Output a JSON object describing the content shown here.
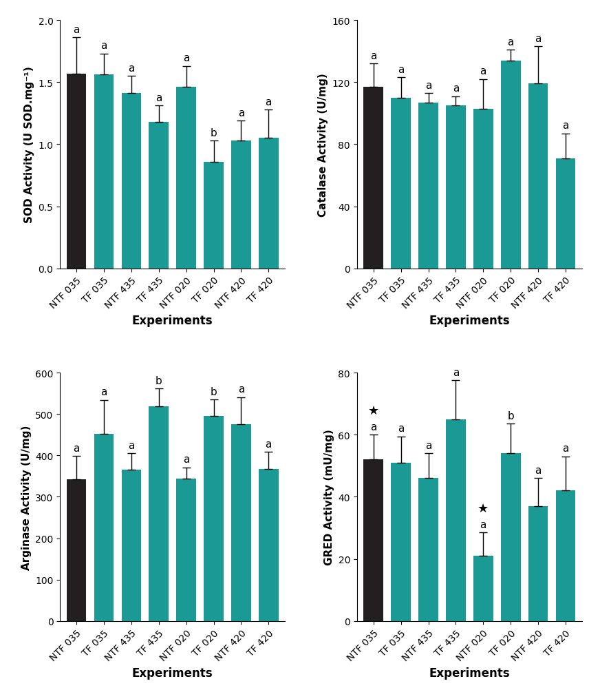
{
  "chart_data": [
    {
      "type": "bar",
      "ylabel": "SOD Activity (U SOD.mg⁻¹)",
      "xlabel": "Experiments",
      "categories": [
        "NTF 035",
        "TF 035",
        "NTF 435",
        "TF 435",
        "NTF 020",
        "TF 020",
        "NTF 420",
        "TF 420"
      ],
      "values": [
        1.57,
        1.56,
        1.41,
        1.18,
        1.46,
        0.86,
        1.03,
        1.05
      ],
      "errors": [
        0.29,
        0.17,
        0.14,
        0.13,
        0.17,
        0.17,
        0.16,
        0.23
      ],
      "letters": [
        "a",
        "a",
        "a",
        "a",
        "a",
        "b",
        "a",
        "a"
      ],
      "colors": [
        "#231f20",
        "#1b9a95",
        "#1b9a95",
        "#1b9a95",
        "#1b9a95",
        "#1b9a95",
        "#1b9a95",
        "#1b9a95"
      ],
      "ylim": [
        0,
        2
      ],
      "yticks": [
        {
          "value": 0,
          "label": "0.0"
        },
        {
          "value": 0.5,
          "label": "0.5"
        },
        {
          "value": 1,
          "label": "1.0"
        },
        {
          "value": 1.5,
          "label": "1.5"
        },
        {
          "value": 2,
          "label": "2.0"
        }
      ]
    },
    {
      "type": "bar",
      "ylabel": "Catalase Activity (U/mg)",
      "xlabel": "Experiments",
      "categories": [
        "NTF 035",
        "TF 035",
        "NTF 435",
        "TF 435",
        "NTF 020",
        "TF 020",
        "NTF 420",
        "TF 420"
      ],
      "values": [
        117,
        110,
        107,
        105,
        103,
        134,
        119,
        71
      ],
      "errors": [
        15,
        13,
        6,
        6,
        19,
        7,
        24,
        16
      ],
      "letters": [
        "a",
        "a",
        "a",
        "a",
        "a",
        "a",
        "a",
        "a"
      ],
      "colors": [
        "#231f20",
        "#1b9a95",
        "#1b9a95",
        "#1b9a95",
        "#1b9a95",
        "#1b9a95",
        "#1b9a95",
        "#1b9a95"
      ],
      "ylim": [
        0,
        160
      ],
      "yticks": [
        0,
        40,
        80,
        120,
        160
      ]
    },
    {
      "type": "bar",
      "ylabel": "Arginase Activity (U/mg)",
      "xlabel": "Experiments",
      "categories": [
        "NTF 035",
        "TF 035",
        "NTF 435",
        "TF 435",
        "NTF 020",
        "TF 020",
        "NTF 420",
        "TF 420"
      ],
      "values": [
        342,
        452,
        365,
        519,
        344,
        496,
        476,
        367
      ],
      "errors": [
        57,
        82,
        40,
        43,
        27,
        39,
        65,
        42
      ],
      "letters": [
        "a",
        "a",
        "a",
        "b",
        "a",
        "b",
        "a",
        "a"
      ],
      "colors": [
        "#231f20",
        "#1b9a95",
        "#1b9a95",
        "#1b9a95",
        "#1b9a95",
        "#1b9a95",
        "#1b9a95",
        "#1b9a95"
      ],
      "ylim": [
        0,
        600
      ],
      "yticks": [
        0,
        100,
        200,
        300,
        400,
        500,
        600
      ]
    },
    {
      "type": "bar",
      "ylabel": "GRED Activity (mU/mg)",
      "xlabel": "Experiments",
      "categories": [
        "NTF 035",
        "TF 035",
        "NTF 435",
        "TF 435",
        "NTF 020",
        "TF 020",
        "NTF 420",
        "TF 420"
      ],
      "values": [
        52,
        51,
        46,
        65,
        21,
        54,
        37,
        42
      ],
      "errors": [
        8,
        8.5,
        8,
        12.5,
        7.5,
        9.5,
        9,
        11
      ],
      "letters": [
        "a",
        "a",
        "a",
        "a",
        "a",
        "b",
        "a",
        "a"
      ],
      "symbols": [
        "★",
        null,
        null,
        null,
        "★",
        null,
        null,
        null
      ],
      "colors": [
        "#231f20",
        "#1b9a95",
        "#1b9a95",
        "#1b9a95",
        "#1b9a95",
        "#1b9a95",
        "#1b9a95",
        "#1b9a95"
      ],
      "ylim": [
        0,
        80
      ],
      "yticks": [
        0,
        20,
        40,
        60,
        80
      ]
    }
  ]
}
